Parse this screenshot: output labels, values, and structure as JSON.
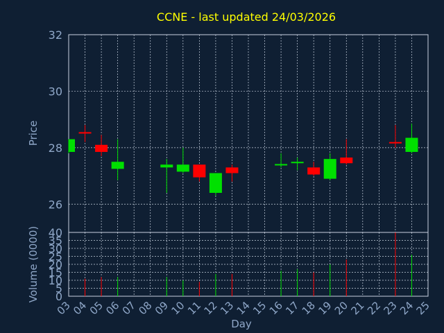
{
  "chart_data": {
    "type": "candlestick",
    "title": "CCNE - last updated 24/03/2026",
    "price_panel": {
      "ylabel": "Price",
      "ylim": [
        25,
        32
      ],
      "yticks": [
        26,
        28,
        30,
        32
      ],
      "grid": true
    },
    "volume_panel": {
      "ylabel": "Volume (0000)",
      "ylim": [
        0,
        40
      ],
      "yticks": [
        0,
        5,
        10,
        15,
        20,
        25,
        30,
        35,
        40
      ],
      "grid": true
    },
    "xlabel": "Day",
    "xticks": [
      "03",
      "04",
      "05",
      "06",
      "07",
      "08",
      "09",
      "10",
      "11",
      "12",
      "13",
      "14",
      "15",
      "16",
      "17",
      "18",
      "19",
      "20",
      "21",
      "22",
      "23",
      "24",
      "25"
    ],
    "colors": {
      "up": "#00e000",
      "down": "#ff0000",
      "title": "#ffff00",
      "axis_text": "#8fa7c8"
    },
    "candles": [
      {
        "day": "03",
        "open": 27.85,
        "high": 28.3,
        "low": 27.8,
        "close": 28.3
      },
      {
        "day": "04",
        "open": 28.55,
        "high": 28.8,
        "low": 28.2,
        "close": 28.5
      },
      {
        "day": "05",
        "open": 28.1,
        "high": 28.45,
        "low": 27.7,
        "close": 27.85
      },
      {
        "day": "06",
        "open": 27.25,
        "high": 28.3,
        "low": 26.85,
        "close": 27.5
      },
      {
        "day": "09",
        "open": 27.3,
        "high": 27.6,
        "low": 26.4,
        "close": 27.4
      },
      {
        "day": "10",
        "open": 27.15,
        "high": 28.0,
        "low": 27.1,
        "close": 27.4
      },
      {
        "day": "11",
        "open": 27.4,
        "high": 27.4,
        "low": 26.8,
        "close": 26.95
      },
      {
        "day": "12",
        "open": 26.4,
        "high": 27.1,
        "low": 26.3,
        "close": 27.1
      },
      {
        "day": "13",
        "open": 27.3,
        "high": 27.4,
        "low": 26.8,
        "close": 27.1
      },
      {
        "day": "16",
        "open": 27.38,
        "high": 27.8,
        "low": 27.3,
        "close": 27.42
      },
      {
        "day": "17",
        "open": 27.45,
        "high": 27.65,
        "low": 27.2,
        "close": 27.5
      },
      {
        "day": "18",
        "open": 27.3,
        "high": 27.5,
        "low": 27.0,
        "close": 27.05
      },
      {
        "day": "19",
        "open": 26.9,
        "high": 27.8,
        "low": 26.85,
        "close": 27.6
      },
      {
        "day": "20",
        "open": 27.65,
        "high": 28.3,
        "low": 27.4,
        "close": 27.45
      },
      {
        "day": "23",
        "open": 28.2,
        "high": 28.8,
        "low": 28.0,
        "close": 28.15
      },
      {
        "day": "24",
        "open": 27.85,
        "high": 28.85,
        "low": 27.8,
        "close": 28.35
      }
    ],
    "volume": [
      {
        "day": "03",
        "value": 0,
        "dir": "up"
      },
      {
        "day": "04",
        "value": 11,
        "dir": "down"
      },
      {
        "day": "05",
        "value": 12,
        "dir": "down"
      },
      {
        "day": "06",
        "value": 12,
        "dir": "up"
      },
      {
        "day": "09",
        "value": 12,
        "dir": "up"
      },
      {
        "day": "10",
        "value": 10,
        "dir": "up"
      },
      {
        "day": "11",
        "value": 9,
        "dir": "down"
      },
      {
        "day": "12",
        "value": 14,
        "dir": "up"
      },
      {
        "day": "13",
        "value": 14,
        "dir": "down"
      },
      {
        "day": "16",
        "value": 16,
        "dir": "up"
      },
      {
        "day": "17",
        "value": 17,
        "dir": "up"
      },
      {
        "day": "18",
        "value": 15,
        "dir": "down"
      },
      {
        "day": "19",
        "value": 20,
        "dir": "up"
      },
      {
        "day": "20",
        "value": 23,
        "dir": "down"
      },
      {
        "day": "23",
        "value": 40,
        "dir": "down"
      },
      {
        "day": "24",
        "value": 26,
        "dir": "up"
      }
    ]
  }
}
